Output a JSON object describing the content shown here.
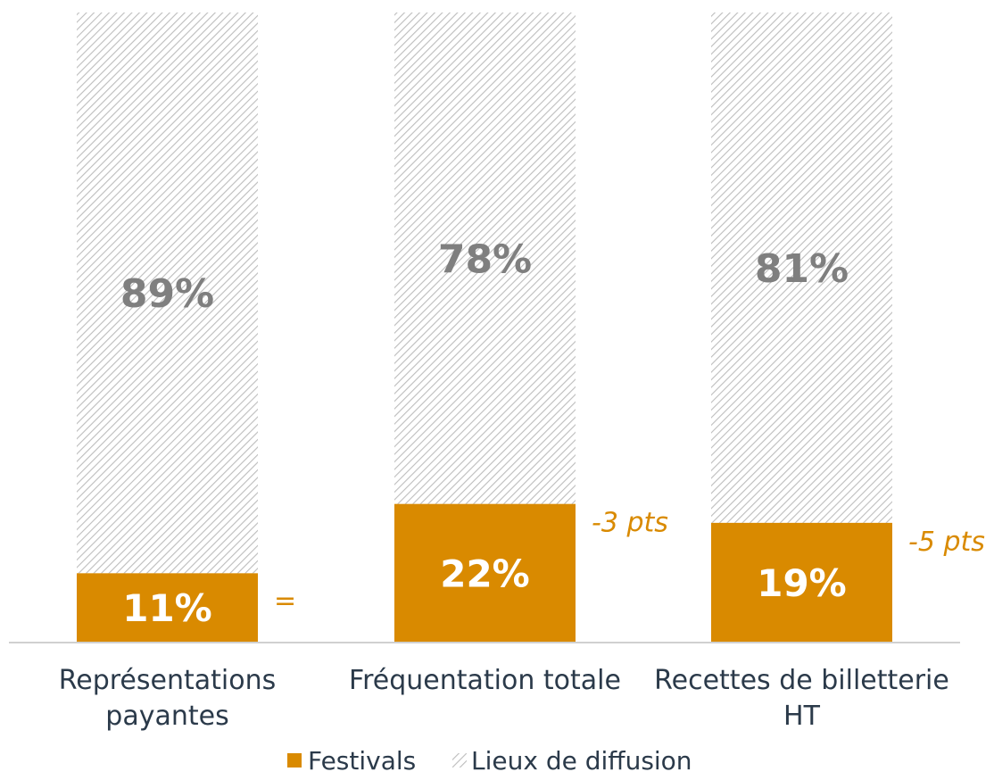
{
  "colors": {
    "festivals": "#D98A00",
    "lieux": "#bdbdbd",
    "delta": "#D98A00",
    "text": "#2b3a4a",
    "value_top": "#7f7f7f"
  },
  "chart_data": {
    "type": "bar",
    "stacked": true,
    "percent": true,
    "categories": [
      "Représentations payantes",
      "Fréquentation totale",
      "Recettes de billetterie HT"
    ],
    "category_lines": [
      [
        "Représentations",
        "payantes"
      ],
      [
        "Fréquentation totale"
      ],
      [
        "Recettes de billetterie",
        "HT"
      ]
    ],
    "series": [
      {
        "name": "Festivals",
        "values": [
          11,
          22,
          19
        ],
        "labels": [
          "11%",
          "22%",
          "19%"
        ]
      },
      {
        "name": "Lieux de diffusion",
        "values": [
          89,
          78,
          81
        ],
        "labels": [
          "89%",
          "78%",
          "81%"
        ]
      }
    ],
    "annotations": [
      "=",
      "-3 pts",
      "-5 pts"
    ],
    "ylim": [
      0,
      100
    ],
    "grid": false,
    "legend_position": "bottom"
  },
  "legend": {
    "items": [
      {
        "label": "Festivals",
        "swatch": "solid"
      },
      {
        "label": "Lieux de diffusion",
        "swatch": "hatched"
      }
    ]
  }
}
